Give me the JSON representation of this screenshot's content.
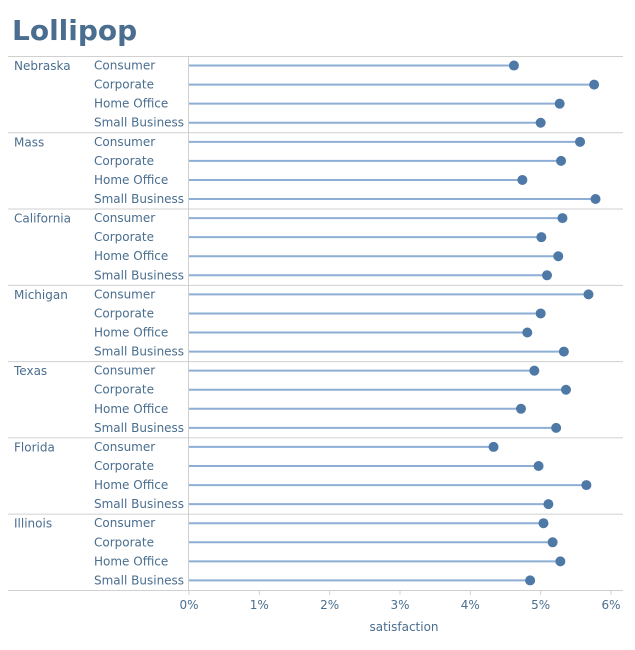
{
  "title": "Lollipop",
  "colors": {
    "title": "#4a6e8f",
    "stem": "#8eaed6",
    "dot": "#4e79a7",
    "divider": "#d0d0d0",
    "text": "#4a6e8f"
  },
  "chart_data": {
    "type": "lollipop",
    "title": "Lollipop",
    "xlabel": "satisfaction",
    "xlim": [
      0,
      6
    ],
    "x_ticks": [
      "0%",
      "1%",
      "2%",
      "3%",
      "4%",
      "5%",
      "6%"
    ],
    "grid": false,
    "groups": [
      {
        "name": "Nebraska",
        "rows": [
          {
            "segment": "Consumer",
            "value": 4.62
          },
          {
            "segment": "Corporate",
            "value": 5.76
          },
          {
            "segment": "Home Office",
            "value": 5.27
          },
          {
            "segment": "Small Business",
            "value": 5.0
          }
        ]
      },
      {
        "name": "Mass",
        "rows": [
          {
            "segment": "Consumer",
            "value": 5.56
          },
          {
            "segment": "Corporate",
            "value": 5.29
          },
          {
            "segment": "Home Office",
            "value": 4.74
          },
          {
            "segment": "Small Business",
            "value": 5.78
          }
        ]
      },
      {
        "name": "California",
        "rows": [
          {
            "segment": "Consumer",
            "value": 5.31
          },
          {
            "segment": "Corporate",
            "value": 5.01
          },
          {
            "segment": "Home Office",
            "value": 5.25
          },
          {
            "segment": "Small Business",
            "value": 5.09
          }
        ]
      },
      {
        "name": "Michigan",
        "rows": [
          {
            "segment": "Consumer",
            "value": 5.68
          },
          {
            "segment": "Corporate",
            "value": 5.0
          },
          {
            "segment": "Home Office",
            "value": 4.81
          },
          {
            "segment": "Small Business",
            "value": 5.33
          }
        ]
      },
      {
        "name": "Texas",
        "rows": [
          {
            "segment": "Consumer",
            "value": 4.91
          },
          {
            "segment": "Corporate",
            "value": 5.36
          },
          {
            "segment": "Home Office",
            "value": 4.72
          },
          {
            "segment": "Small Business",
            "value": 5.22
          }
        ]
      },
      {
        "name": "Florida",
        "rows": [
          {
            "segment": "Consumer",
            "value": 4.33
          },
          {
            "segment": "Corporate",
            "value": 4.97
          },
          {
            "segment": "Home Office",
            "value": 5.65
          },
          {
            "segment": "Small Business",
            "value": 5.11
          }
        ]
      },
      {
        "name": "Illinois",
        "rows": [
          {
            "segment": "Consumer",
            "value": 5.04
          },
          {
            "segment": "Corporate",
            "value": 5.17
          },
          {
            "segment": "Home Office",
            "value": 5.28
          },
          {
            "segment": "Small Business",
            "value": 4.85
          }
        ]
      }
    ]
  }
}
